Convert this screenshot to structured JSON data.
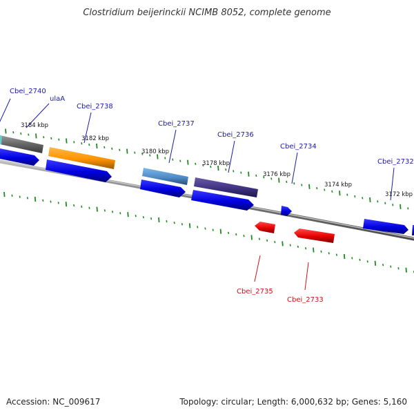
{
  "title": "Clostridium beijerinckii NCIMB 8052, complete genome",
  "footer": {
    "accession": "Accession: NC_009617",
    "summary": "Topology: circular; Length: 6,000,632 bp; Genes: 5,160"
  },
  "colors": {
    "forward_label": "#1a1aa6",
    "reverse_label": "#cc1111",
    "tick": "#1f8a1f",
    "backbone": "#888888",
    "cds_blue": "#0000ee",
    "cds_red": "#ee0000"
  },
  "scale_labels": [
    "3184 kbp",
    "3182 kbp",
    "3180 kbp",
    "3178 kbp",
    "3176 kbp",
    "3174 kbp",
    "3172 kbp"
  ],
  "genes": [
    {
      "label": "Cbei_2740",
      "strand": "forward",
      "feature_color": "#777777"
    },
    {
      "label": "ulaA",
      "strand": "forward"
    },
    {
      "label": "Cbei_2738",
      "strand": "forward",
      "feature_color": "#ff9a00"
    },
    {
      "label": "Cbei_2737",
      "strand": "forward",
      "feature_color": "#5a9ad6"
    },
    {
      "label": "Cbei_2736",
      "strand": "forward",
      "feature_color": "#4a3c8a"
    },
    {
      "label": "Cbei_2734",
      "strand": "forward"
    },
    {
      "label": "Cbei_2732",
      "strand": "forward"
    },
    {
      "label": "Cbei_2735",
      "strand": "reverse"
    },
    {
      "label": "Cbei_2733",
      "strand": "reverse"
    }
  ]
}
